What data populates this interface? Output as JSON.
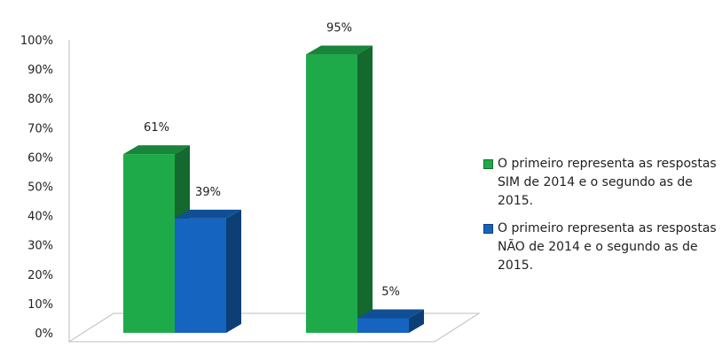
{
  "chart_data": {
    "type": "bar",
    "categories": [
      "",
      ""
    ],
    "series": [
      {
        "name": "O primeiro representa as respostas SIM de 2014 e o segundo as de 2015.",
        "values": [
          61,
          95
        ],
        "color": "#1faa4a"
      },
      {
        "name": "O primeiro representa as respostas NÃO de 2014 e o segundo as de 2015.",
        "values": [
          39,
          5
        ],
        "color": "#1565c0"
      }
    ],
    "data_labels": [
      [
        "61%",
        "95%"
      ],
      [
        "39%",
        "5%"
      ]
    ],
    "y_ticks": [
      "0%",
      "10%",
      "20%",
      "30%",
      "40%",
      "50%",
      "60%",
      "70%",
      "80%",
      "90%",
      "100%"
    ],
    "ylim": [
      0,
      100
    ],
    "title": "",
    "xlabel": "",
    "ylabel": "",
    "legend_position": "right",
    "grid": false,
    "three_d": true
  }
}
